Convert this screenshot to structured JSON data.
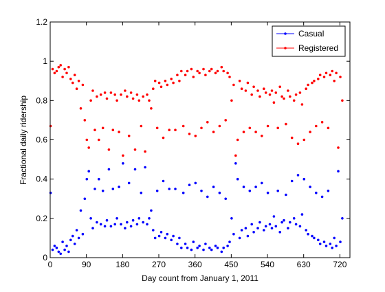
{
  "chart_data": {
    "type": "scatter",
    "title": "",
    "xlabel": "Day count from January 1, 2011",
    "ylabel": "Fractional daily ridership",
    "xlim": [
      0,
      745
    ],
    "ylim": [
      0,
      1.2
    ],
    "xticks": [
      "0",
      "90",
      "180",
      "270",
      "360",
      "450",
      "540",
      "630",
      "720"
    ],
    "yticks": [
      "0",
      "0.2",
      "0.4",
      "0.6",
      "0.8",
      "1",
      "1.2"
    ],
    "grid": false,
    "legend": "top-right",
    "series": [
      {
        "name": "Casual",
        "color": "#0000ff",
        "marker": "dot",
        "x": [
          1,
          6,
          11,
          16,
          21,
          26,
          31,
          36,
          41,
          46,
          51,
          56,
          61,
          66,
          71,
          76,
          81,
          86,
          91,
          96,
          101,
          106,
          111,
          116,
          121,
          126,
          131,
          136,
          141,
          146,
          151,
          156,
          161,
          166,
          171,
          176,
          181,
          186,
          191,
          196,
          201,
          206,
          211,
          216,
          221,
          226,
          231,
          236,
          241,
          246,
          251,
          256,
          261,
          266,
          271,
          276,
          281,
          286,
          291,
          296,
          301,
          306,
          311,
          316,
          321,
          326,
          331,
          336,
          341,
          346,
          351,
          356,
          361,
          366,
          371,
          376,
          381,
          386,
          391,
          396,
          401,
          406,
          411,
          416,
          421,
          426,
          431,
          436,
          441,
          446,
          451,
          456,
          461,
          466,
          471,
          476,
          481,
          486,
          491,
          496,
          501,
          506,
          511,
          516,
          521,
          526,
          531,
          536,
          541,
          546,
          551,
          556,
          561,
          566,
          571,
          576,
          581,
          586,
          591,
          596,
          601,
          606,
          611,
          616,
          621,
          626,
          631,
          636,
          641,
          646,
          651,
          656,
          661,
          666,
          671,
          676,
          681,
          686,
          691,
          696,
          701,
          706,
          711,
          716,
          721,
          726
        ],
        "y": [
          0.33,
          0.04,
          0.06,
          0.05,
          0.03,
          0.02,
          0.08,
          0.04,
          0.06,
          0.03,
          0.09,
          0.11,
          0.07,
          0.14,
          0.1,
          0.24,
          0.12,
          0.3,
          0.4,
          0.44,
          0.2,
          0.15,
          0.35,
          0.18,
          0.4,
          0.17,
          0.34,
          0.16,
          0.19,
          0.45,
          0.16,
          0.35,
          0.17,
          0.2,
          0.36,
          0.17,
          0.48,
          0.15,
          0.18,
          0.38,
          0.16,
          0.19,
          0.45,
          0.17,
          0.2,
          0.33,
          0.18,
          0.46,
          0.17,
          0.2,
          0.24,
          0.14,
          0.1,
          0.34,
          0.11,
          0.13,
          0.39,
          0.1,
          0.12,
          0.35,
          0.09,
          0.11,
          0.35,
          0.07,
          0.1,
          0.05,
          0.33,
          0.07,
          0.05,
          0.37,
          0.04,
          0.08,
          0.38,
          0.05,
          0.06,
          0.34,
          0.04,
          0.07,
          0.31,
          0.05,
          0.04,
          0.36,
          0.06,
          0.05,
          0.33,
          0.03,
          0.05,
          0.3,
          0.06,
          0.08,
          0.2,
          0.12,
          0.48,
          0.4,
          0.1,
          0.14,
          0.36,
          0.15,
          0.11,
          0.34,
          0.17,
          0.13,
          0.36,
          0.15,
          0.18,
          0.38,
          0.14,
          0.16,
          0.33,
          0.17,
          0.15,
          0.21,
          0.16,
          0.34,
          0.13,
          0.18,
          0.19,
          0.32,
          0.15,
          0.18,
          0.39,
          0.2,
          0.17,
          0.42,
          0.16,
          0.22,
          0.4,
          0.14,
          0.12,
          0.36,
          0.11,
          0.1,
          0.33,
          0.09,
          0.07,
          0.31,
          0.08,
          0.06,
          0.34,
          0.07,
          0.05,
          0.1,
          0.06,
          0.44,
          0.08,
          0.2
        ]
      },
      {
        "name": "Registered",
        "color": "#ff0000",
        "marker": "dot",
        "x": [
          1,
          6,
          11,
          16,
          21,
          26,
          31,
          36,
          41,
          46,
          51,
          56,
          61,
          66,
          71,
          76,
          81,
          86,
          91,
          96,
          101,
          106,
          111,
          116,
          121,
          126,
          131,
          136,
          141,
          146,
          151,
          156,
          161,
          166,
          171,
          176,
          181,
          186,
          191,
          196,
          201,
          206,
          211,
          216,
          221,
          226,
          231,
          236,
          241,
          246,
          251,
          256,
          261,
          266,
          271,
          276,
          281,
          286,
          291,
          296,
          301,
          306,
          311,
          316,
          321,
          326,
          331,
          336,
          341,
          346,
          351,
          356,
          361,
          366,
          371,
          376,
          381,
          386,
          391,
          396,
          401,
          406,
          411,
          416,
          421,
          426,
          431,
          436,
          441,
          446,
          451,
          456,
          461,
          466,
          471,
          476,
          481,
          486,
          491,
          496,
          501,
          506,
          511,
          516,
          521,
          526,
          531,
          536,
          541,
          546,
          551,
          556,
          561,
          566,
          571,
          576,
          581,
          586,
          591,
          596,
          601,
          606,
          611,
          616,
          621,
          626,
          631,
          636,
          641,
          646,
          651,
          656,
          661,
          666,
          671,
          676,
          681,
          686,
          691,
          696,
          701,
          706,
          711,
          716,
          721,
          726
        ],
        "y": [
          0.67,
          0.96,
          0.94,
          0.95,
          0.97,
          0.98,
          0.92,
          0.96,
          0.94,
          0.97,
          0.91,
          0.89,
          0.93,
          0.86,
          0.9,
          0.76,
          0.88,
          0.7,
          0.6,
          0.56,
          0.8,
          0.85,
          0.65,
          0.82,
          0.6,
          0.83,
          0.66,
          0.84,
          0.81,
          0.55,
          0.84,
          0.65,
          0.83,
          0.8,
          0.64,
          0.83,
          0.52,
          0.85,
          0.82,
          0.62,
          0.84,
          0.81,
          0.55,
          0.83,
          0.8,
          0.67,
          0.82,
          0.54,
          0.83,
          0.8,
          0.76,
          0.86,
          0.9,
          0.66,
          0.89,
          0.87,
          0.61,
          0.9,
          0.88,
          0.65,
          0.91,
          0.89,
          0.65,
          0.93,
          0.9,
          0.95,
          0.67,
          0.93,
          0.95,
          0.63,
          0.96,
          0.92,
          0.62,
          0.95,
          0.94,
          0.66,
          0.96,
          0.93,
          0.69,
          0.95,
          0.96,
          0.64,
          0.94,
          0.95,
          0.67,
          0.97,
          0.95,
          0.7,
          0.94,
          0.92,
          0.8,
          0.88,
          0.52,
          0.6,
          0.9,
          0.86,
          0.64,
          0.85,
          0.89,
          0.66,
          0.83,
          0.87,
          0.64,
          0.85,
          0.82,
          0.62,
          0.86,
          0.84,
          0.67,
          0.83,
          0.85,
          0.79,
          0.84,
          0.66,
          0.87,
          0.82,
          0.81,
          0.68,
          0.85,
          0.82,
          0.61,
          0.8,
          0.83,
          0.58,
          0.84,
          0.78,
          0.6,
          0.86,
          0.88,
          0.64,
          0.89,
          0.9,
          0.67,
          0.91,
          0.93,
          0.69,
          0.92,
          0.94,
          0.66,
          0.93,
          0.95,
          0.9,
          0.94,
          0.56,
          0.92,
          0.8
        ]
      }
    ]
  }
}
